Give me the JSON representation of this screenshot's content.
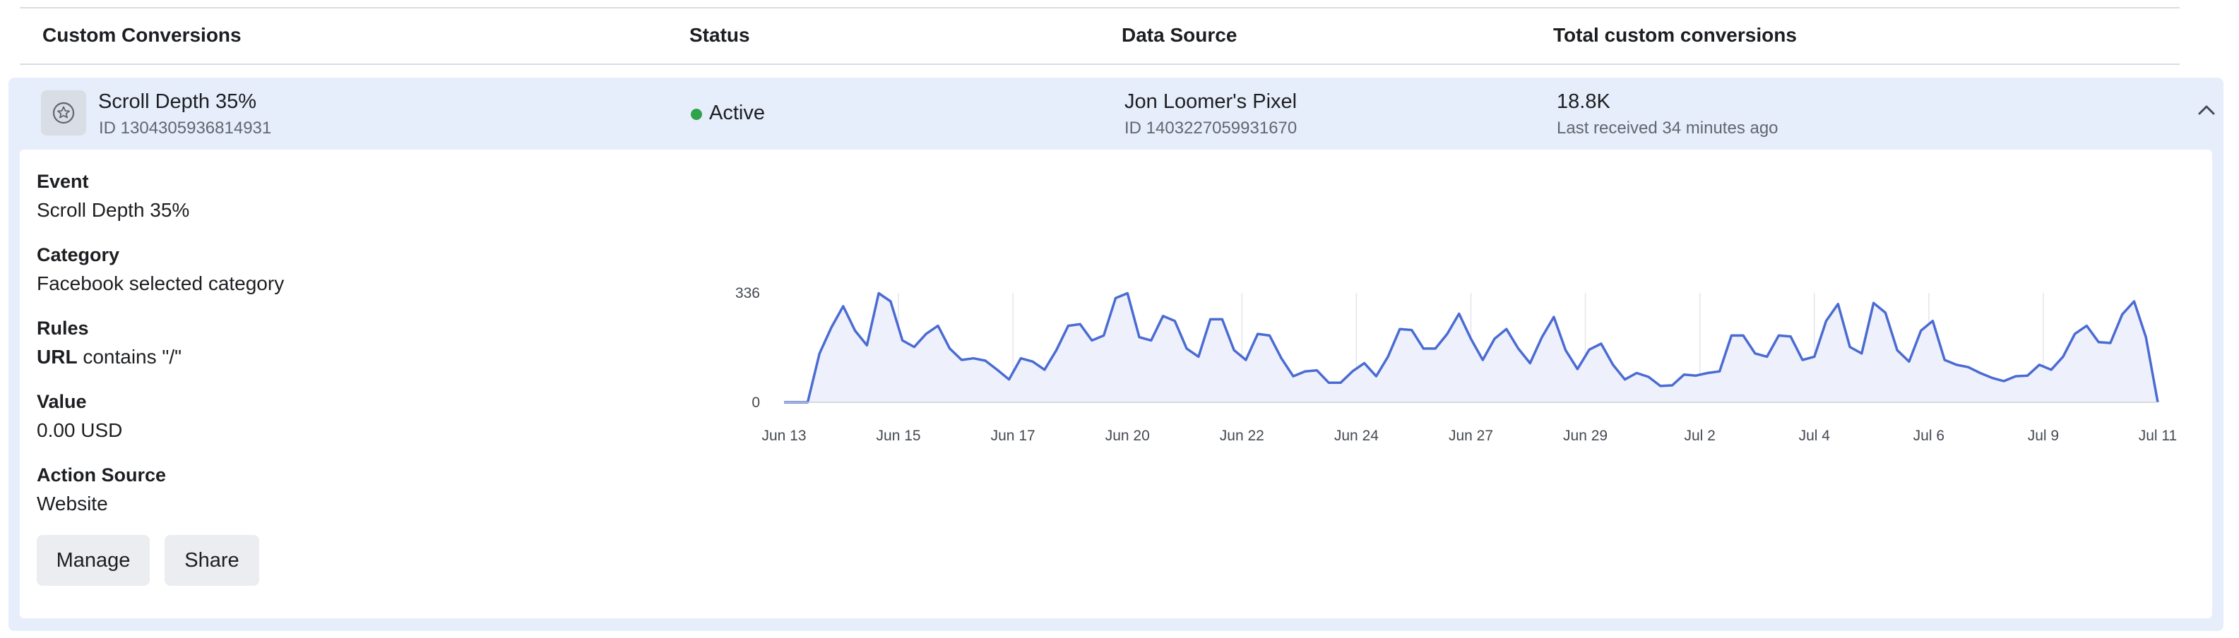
{
  "table": {
    "headers": {
      "name": "Custom Conversions",
      "status": "Status",
      "source": "Data Source",
      "total": "Total custom conversions"
    }
  },
  "row": {
    "name": "Scroll Depth 35%",
    "id": "ID 1304305936814931",
    "status": "Active",
    "status_color": "#31a24c",
    "source_name": "Jon Loomer's Pixel",
    "source_id": "ID 1403227059931670",
    "total": "18.8K",
    "last_received": "Last received 34 minutes ago",
    "icon": "star-icon",
    "toggle_icon": "chevron-up-icon"
  },
  "details": {
    "event_label": "Event",
    "event_value": "Scroll Depth 35%",
    "category_label": "Category",
    "category_value": "Facebook selected category",
    "rules_label": "Rules",
    "rules_field": "URL",
    "rules_rest": "contains \"/\"",
    "value_label": "Value",
    "value_value": "0.00 USD",
    "action_source_label": "Action Source",
    "action_source_value": "Website"
  },
  "buttons": {
    "manage": "Manage",
    "share": "Share"
  },
  "chart_data": {
    "type": "area",
    "line_color": "#4a6bd3",
    "fill_color": "#eef1fb",
    "grid": true,
    "ylim": [
      0,
      336
    ],
    "yticks": [
      0,
      336
    ],
    "xtick_labels": [
      "Jun 13",
      "Jun 15",
      "Jun 17",
      "Jun 20",
      "Jun 22",
      "Jun 24",
      "Jun 27",
      "Jun 29",
      "Jul 2",
      "Jul 4",
      "Jul 6",
      "Jul 9",
      "Jul 11"
    ],
    "values": [
      0,
      0,
      0,
      150,
      230,
      295,
      220,
      175,
      335,
      310,
      190,
      170,
      210,
      235,
      165,
      130,
      135,
      128,
      100,
      70,
      135,
      125,
      100,
      160,
      235,
      240,
      190,
      205,
      320,
      335,
      200,
      190,
      265,
      250,
      165,
      140,
      255,
      255,
      160,
      130,
      210,
      205,
      135,
      80,
      95,
      98,
      60,
      60,
      95,
      120,
      80,
      140,
      225,
      222,
      165,
      165,
      210,
      272,
      195,
      130,
      195,
      225,
      165,
      120,
      200,
      262,
      160,
      102,
      162,
      180,
      115,
      70,
      90,
      78,
      50,
      52,
      85,
      82,
      90,
      95,
      205,
      205,
      150,
      140,
      205,
      202,
      130,
      140,
      250,
      302,
      170,
      150,
      305,
      275,
      160,
      125,
      220,
      250,
      130,
      115,
      108,
      90,
      75,
      65,
      80,
      82,
      115,
      100,
      140,
      210,
      235,
      185,
      182,
      270,
      310,
      200,
      0
    ]
  }
}
